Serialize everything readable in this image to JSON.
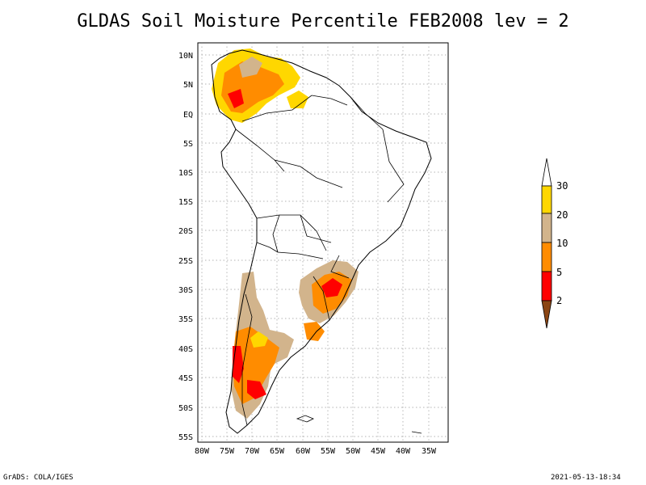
{
  "title": "GLDAS Soil Moisture Percentile FEB2008 lev = 2",
  "map": {
    "lat_labels": [
      "10N",
      "5N",
      "EQ",
      "5S",
      "10S",
      "15S",
      "20S",
      "25S",
      "30S",
      "35S",
      "40S",
      "45S",
      "50S",
      "55S"
    ],
    "lon_labels": [
      "80W",
      "75W",
      "70W",
      "65W",
      "60W",
      "55W",
      "50W",
      "45W",
      "40W",
      "35W"
    ],
    "grid": true
  },
  "legend": {
    "labels": [
      "30",
      "20",
      "10",
      "5",
      "2"
    ],
    "colors": {
      "above_30": "#ffffff",
      "20_30": "#ffd700",
      "10_20": "#d2b48c",
      "5_10": "#ff8c00",
      "2_5": "#ff0000",
      "below_2": "#8b4513"
    }
  },
  "footer": {
    "left": "GrADS: COLA/IGES",
    "right": "2021-05-13-18:34"
  }
}
